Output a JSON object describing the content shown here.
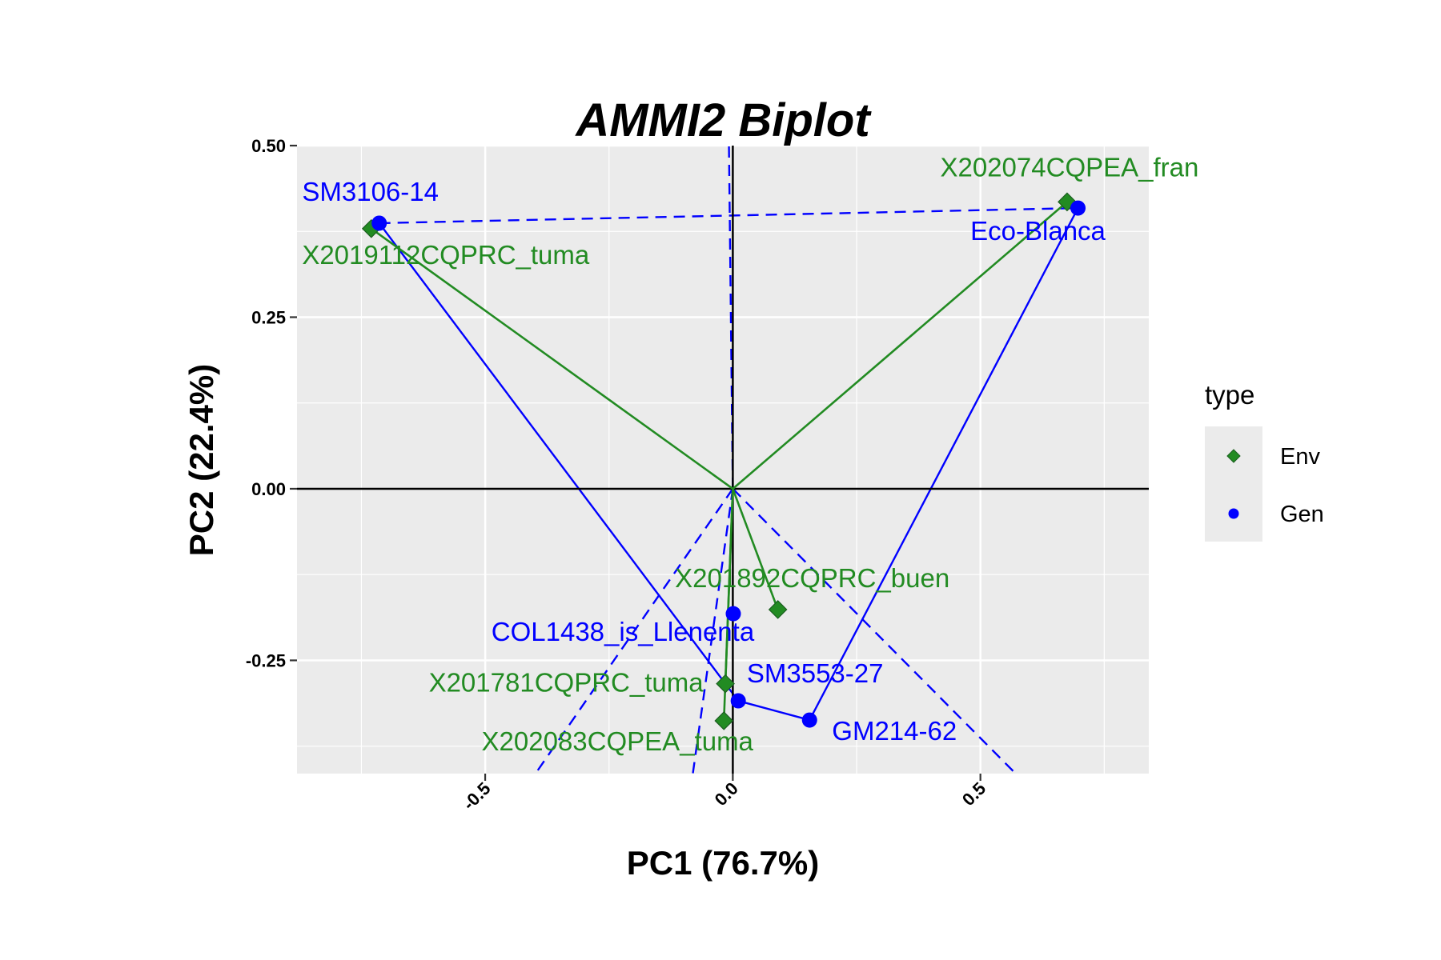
{
  "chart_data": {
    "type": "scatter",
    "title": "AMMI2 Biplot",
    "xlabel": "PC1 (76.7%)",
    "ylabel": "PC2 (22.4%)",
    "xlim": [
      -0.88,
      0.84
    ],
    "ylim": [
      -0.415,
      0.5
    ],
    "x_ticks": [
      {
        "value": -0.5,
        "label": "-0.5"
      },
      {
        "value": 0.0,
        "label": "0.0"
      },
      {
        "value": 0.5,
        "label": "0.5"
      }
    ],
    "y_ticks": [
      {
        "value": 0.5,
        "label": "0.50"
      },
      {
        "value": 0.25,
        "label": "0.25"
      },
      {
        "value": 0.0,
        "label": "0.00"
      },
      {
        "value": -0.25,
        "label": "-0.25"
      }
    ],
    "grid": true,
    "legend": {
      "title": "type",
      "position": "right",
      "items": [
        {
          "label": "Env",
          "shape": "diamond",
          "color": "#228B22"
        },
        {
          "label": "Gen",
          "shape": "circle",
          "color": "#0000FF"
        }
      ]
    },
    "series": [
      {
        "name": "Env",
        "color": "#228B22",
        "points": [
          {
            "label": "X202074CQPEA_fran",
            "x": 0.675,
            "y": 0.418
          },
          {
            "label": "X2019112CQPRC_tuma",
            "x": -0.73,
            "y": 0.379
          },
          {
            "label": "X201892CQPRC_buen",
            "x": 0.091,
            "y": -0.176
          },
          {
            "label": "X201781CQPRC_tuma",
            "x": -0.015,
            "y": -0.284
          },
          {
            "label": "X202083CQPEA_tuma",
            "x": -0.018,
            "y": -0.338
          }
        ]
      },
      {
        "name": "Gen",
        "color": "#0000FF",
        "points": [
          {
            "label": "SM3106-14",
            "x": -0.714,
            "y": 0.387
          },
          {
            "label": "Eco-Blanca",
            "x": 0.697,
            "y": 0.409
          },
          {
            "label": "COL1438_is_Llenenta",
            "x": 0.001,
            "y": -0.182
          },
          {
            "label": "SM3553-27",
            "x": 0.011,
            "y": -0.309
          },
          {
            "label": "GM214-62",
            "x": 0.155,
            "y": -0.337
          }
        ]
      }
    ]
  }
}
